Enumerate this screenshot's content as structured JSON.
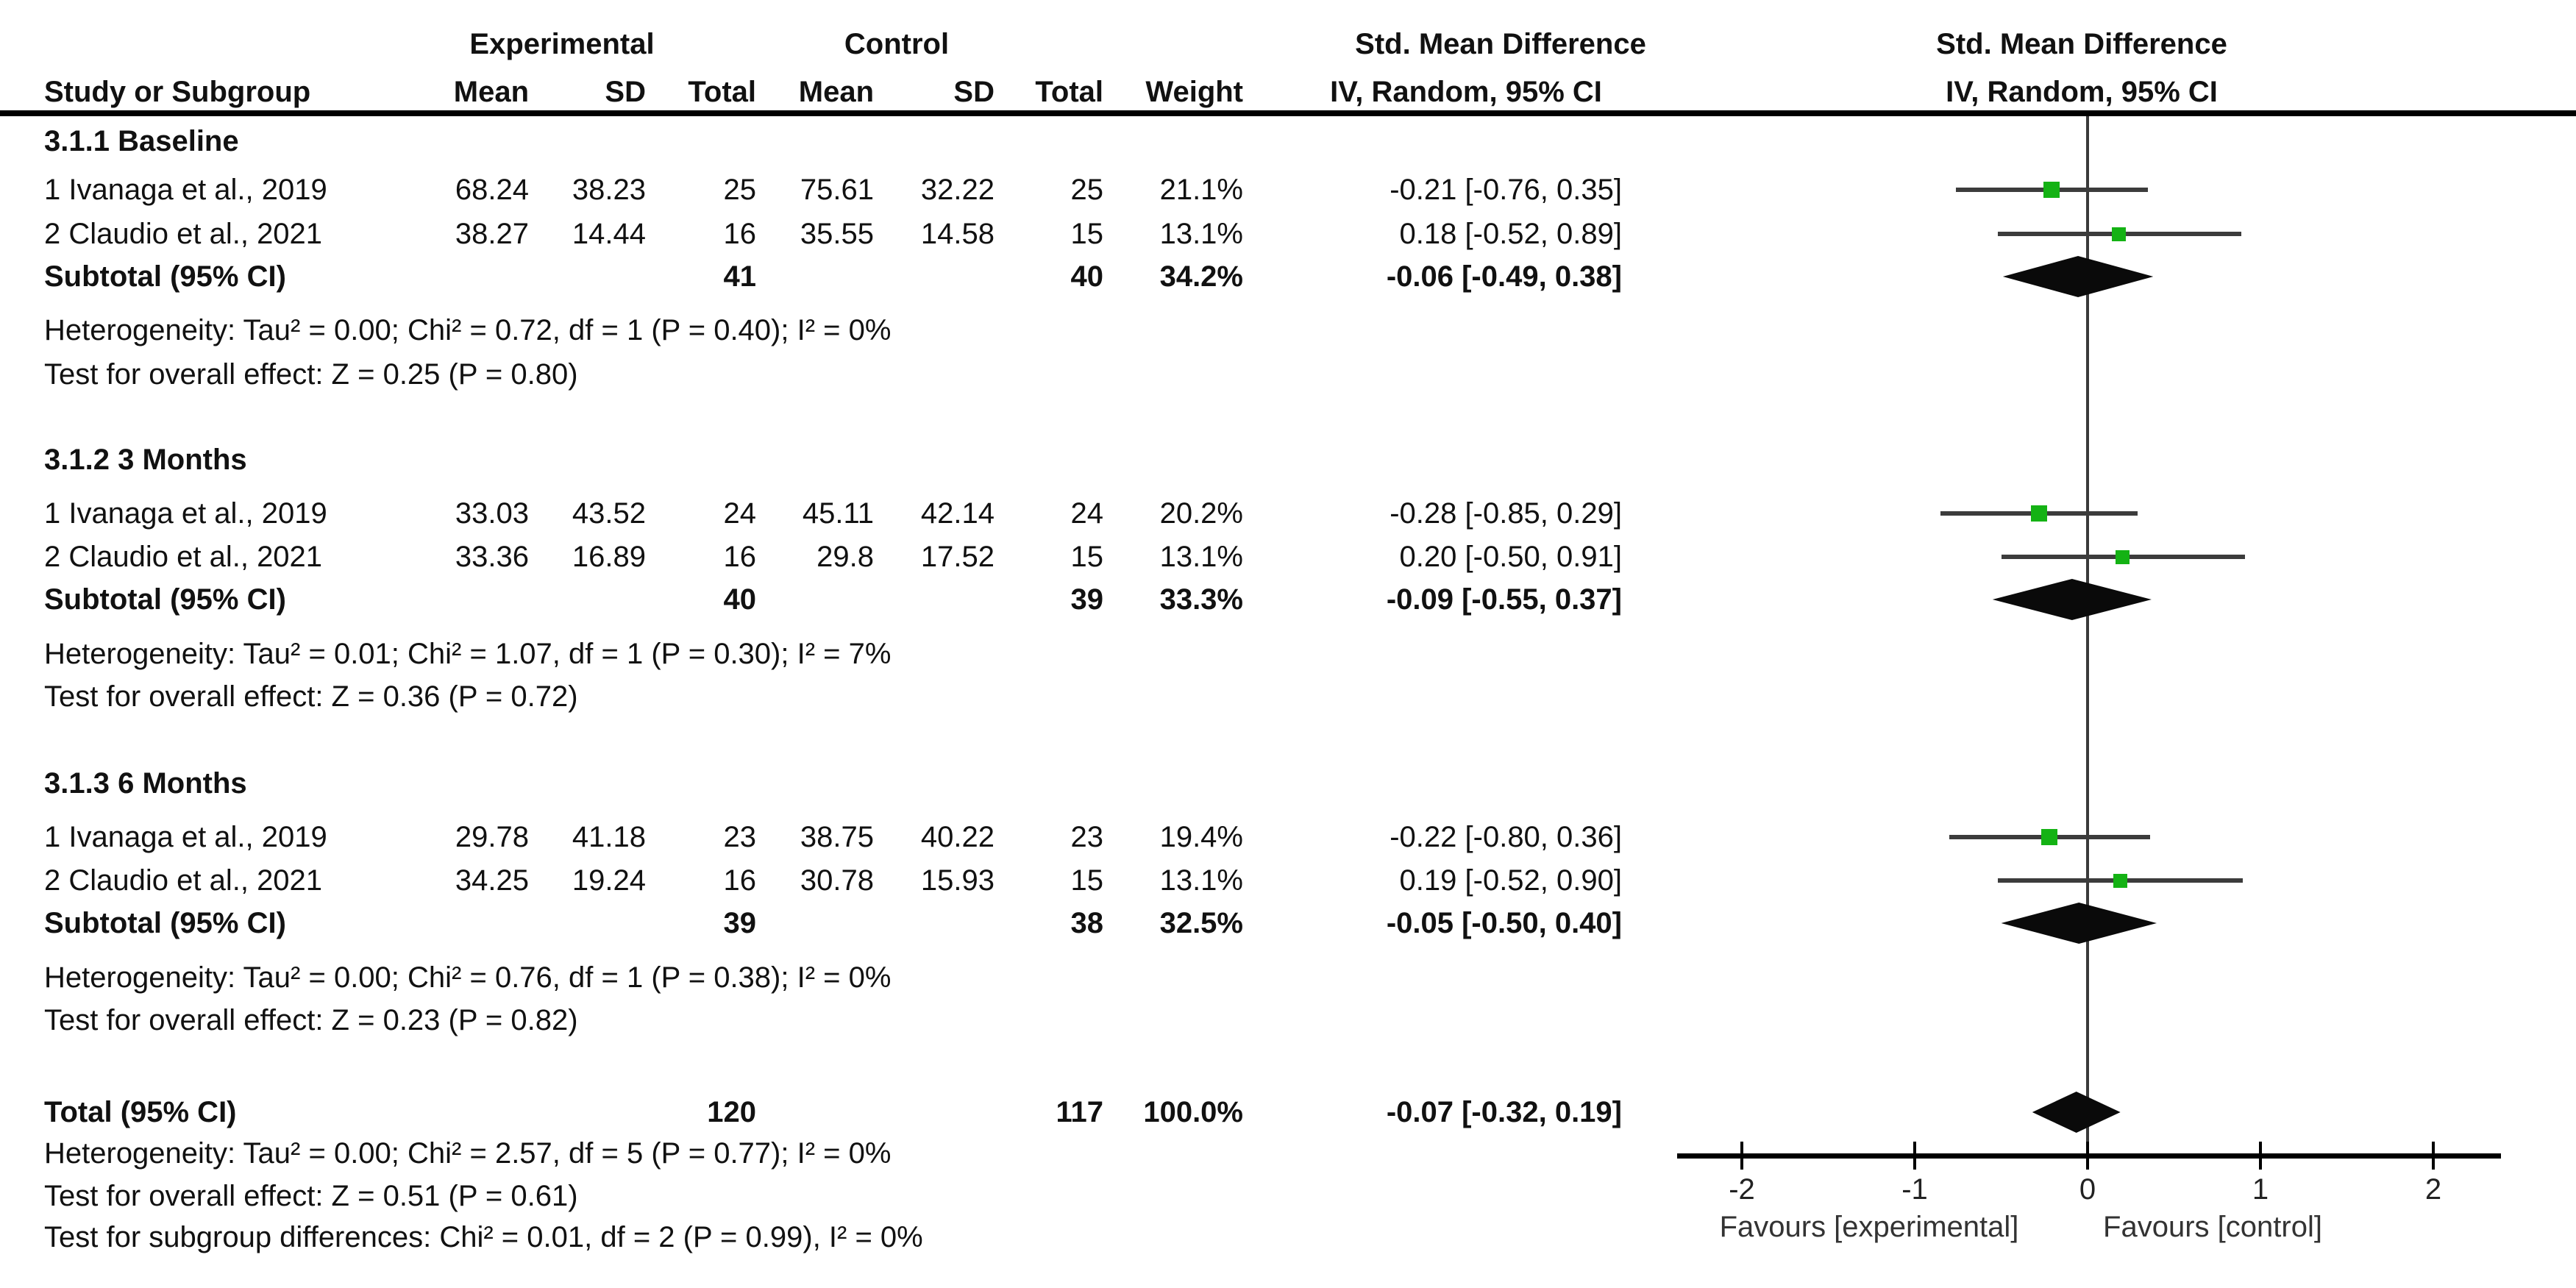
{
  "header": {
    "group_experimental": "Experimental",
    "group_control": "Control",
    "smd_column": "Std. Mean Difference",
    "smd_plot": "Std. Mean Difference",
    "study": "Study or Subgroup",
    "mean_exp": "Mean",
    "sd_exp": "SD",
    "total_exp": "Total",
    "mean_ctrl": "Mean",
    "sd_ctrl": "SD",
    "total_ctrl": "Total",
    "weight": "Weight",
    "method_column": "IV, Random, 95% CI",
    "method_plot": "IV, Random, 95% CI"
  },
  "chart_data": {
    "type": "forest",
    "effect_measure": "Std. Mean Difference",
    "method": "IV, Random, 95% CI",
    "xlim": [
      -2,
      2
    ],
    "sections": [
      {
        "title": "3.1.1 Baseline",
        "studies": [
          {
            "label": "1 Ivanaga et al., 2019",
            "mean_exp": "68.24",
            "sd_exp": "38.23",
            "total_exp": "25",
            "mean_ctrl": "75.61",
            "sd_ctrl": "32.22",
            "total_ctrl": "25",
            "weight": "21.1%",
            "weight_pct": 21.1,
            "ci_text": "-0.21 [-0.76, 0.35]",
            "est": -0.21,
            "lo": -0.76,
            "hi": 0.35
          },
          {
            "label": "2 Claudio et al., 2021",
            "mean_exp": "38.27",
            "sd_exp": "14.44",
            "total_exp": "16",
            "mean_ctrl": "35.55",
            "sd_ctrl": "14.58",
            "total_ctrl": "15",
            "weight": "13.1%",
            "weight_pct": 13.1,
            "ci_text": "0.18 [-0.52, 0.89]",
            "est": 0.18,
            "lo": -0.52,
            "hi": 0.89
          }
        ],
        "subtotal": {
          "label": "Subtotal (95% CI)",
          "total_exp": "41",
          "total_ctrl": "40",
          "weight": "34.2%",
          "ci_text": "-0.06 [-0.49, 0.38]",
          "est": -0.06,
          "lo": -0.49,
          "hi": 0.38
        },
        "heterogeneity": "Heterogeneity: Tau² = 0.00; Chi² = 0.72, df = 1 (P = 0.40); I² = 0%",
        "overall_effect": "Test for overall effect: Z = 0.25 (P = 0.80)"
      },
      {
        "title": "3.1.2 3 Months",
        "studies": [
          {
            "label": "1 Ivanaga et al., 2019",
            "mean_exp": "33.03",
            "sd_exp": "43.52",
            "total_exp": "24",
            "mean_ctrl": "45.11",
            "sd_ctrl": "42.14",
            "total_ctrl": "24",
            "weight": "20.2%",
            "weight_pct": 20.2,
            "ci_text": "-0.28 [-0.85, 0.29]",
            "est": -0.28,
            "lo": -0.85,
            "hi": 0.29
          },
          {
            "label": "2 Claudio et al., 2021",
            "mean_exp": "33.36",
            "sd_exp": "16.89",
            "total_exp": "16",
            "mean_ctrl": "29.8",
            "sd_ctrl": "17.52",
            "total_ctrl": "15",
            "weight": "13.1%",
            "weight_pct": 13.1,
            "ci_text": "0.20 [-0.50, 0.91]",
            "est": 0.2,
            "lo": -0.5,
            "hi": 0.91
          }
        ],
        "subtotal": {
          "label": "Subtotal (95% CI)",
          "total_exp": "40",
          "total_ctrl": "39",
          "weight": "33.3%",
          "ci_text": "-0.09 [-0.55, 0.37]",
          "est": -0.09,
          "lo": -0.55,
          "hi": 0.37
        },
        "heterogeneity": "Heterogeneity: Tau² = 0.01; Chi² = 1.07, df = 1 (P = 0.30); I² = 7%",
        "overall_effect": "Test for overall effect: Z = 0.36 (P = 0.72)"
      },
      {
        "title": "3.1.3 6 Months",
        "studies": [
          {
            "label": "1 Ivanaga et al., 2019",
            "mean_exp": "29.78",
            "sd_exp": "41.18",
            "total_exp": "23",
            "mean_ctrl": "38.75",
            "sd_ctrl": "40.22",
            "total_ctrl": "23",
            "weight": "19.4%",
            "weight_pct": 19.4,
            "ci_text": "-0.22 [-0.80, 0.36]",
            "est": -0.22,
            "lo": -0.8,
            "hi": 0.36
          },
          {
            "label": "2 Claudio et al., 2021",
            "mean_exp": "34.25",
            "sd_exp": "19.24",
            "total_exp": "16",
            "mean_ctrl": "30.78",
            "sd_ctrl": "15.93",
            "total_ctrl": "15",
            "weight": "13.1%",
            "weight_pct": 13.1,
            "ci_text": "0.19 [-0.52, 0.90]",
            "est": 0.19,
            "lo": -0.52,
            "hi": 0.9
          }
        ],
        "subtotal": {
          "label": "Subtotal (95% CI)",
          "total_exp": "39",
          "total_ctrl": "38",
          "weight": "32.5%",
          "ci_text": "-0.05 [-0.50, 0.40]",
          "est": -0.05,
          "lo": -0.5,
          "hi": 0.4
        },
        "heterogeneity": "Heterogeneity: Tau² = 0.00; Chi² = 0.76, df = 1 (P = 0.38); I² = 0%",
        "overall_effect": "Test for overall effect: Z = 0.23 (P = 0.82)"
      }
    ],
    "total": {
      "label": "Total (95% CI)",
      "total_exp": "120",
      "total_ctrl": "117",
      "weight": "100.0%",
      "ci_text": "-0.07 [-0.32, 0.19]",
      "est": -0.07,
      "lo": -0.32,
      "hi": 0.19,
      "heterogeneity": "Heterogeneity: Tau² = 0.00; Chi² = 2.57, df = 5 (P = 0.77); I² = 0%",
      "overall_effect": "Test for overall effect: Z = 0.51 (P = 0.61)",
      "subgroup_differences": "Test for subgroup differences: Chi² = 0.01, df = 2 (P = 0.99), I² = 0%"
    },
    "axis": {
      "ticks": [
        -2,
        -1,
        0,
        1,
        2
      ],
      "tick_labels": [
        "-2",
        "-1",
        "0",
        "1",
        "2"
      ],
      "favours_left": "Favours [experimental]",
      "favours_right": "Favours [control]"
    },
    "colors": {
      "square": "#14b214",
      "diamond": "#0a0a0a",
      "ci_line": "#3c3c3c",
      "zero_line": "#3a3a3a"
    }
  }
}
